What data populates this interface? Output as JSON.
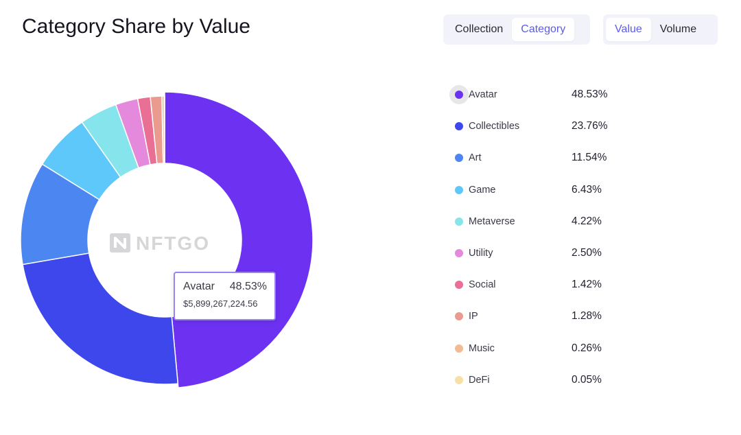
{
  "header": {
    "title": "Category Share by Value"
  },
  "toggles": {
    "mode": [
      {
        "label": "Collection",
        "active": false
      },
      {
        "label": "Category",
        "active": true
      }
    ],
    "metric": [
      {
        "label": "Value",
        "active": true
      },
      {
        "label": "Volume",
        "active": false
      }
    ]
  },
  "watermark": "NFTGO",
  "tooltip": {
    "name": "Avatar",
    "percent": "48.53%",
    "amount": "$5,899,267,224.56"
  },
  "legend": [
    {
      "name": "Avatar",
      "percent": "48.53%",
      "color": "#6d31f2",
      "highlighted": true
    },
    {
      "name": "Collectibles",
      "percent": "23.76%",
      "color": "#3d47ec"
    },
    {
      "name": "Art",
      "percent": "11.54%",
      "color": "#4b86f1"
    },
    {
      "name": "Game",
      "percent": "6.43%",
      "color": "#5ec8fb"
    },
    {
      "name": "Metaverse",
      "percent": "4.22%",
      "color": "#86e4ec"
    },
    {
      "name": "Utility",
      "percent": "2.50%",
      "color": "#e489dc"
    },
    {
      "name": "Social",
      "percent": "1.42%",
      "color": "#ea6f95"
    },
    {
      "name": "IP",
      "percent": "1.28%",
      "color": "#eb9a8e"
    },
    {
      "name": "Music",
      "percent": "0.26%",
      "color": "#f2bb94"
    },
    {
      "name": "DeFi",
      "percent": "0.05%",
      "color": "#f7dfa6"
    }
  ],
  "chart_data": {
    "type": "pie",
    "variant": "donut",
    "categories": [
      "Avatar",
      "Collectibles",
      "Art",
      "Game",
      "Metaverse",
      "Utility",
      "Social",
      "IP",
      "Music",
      "DeFi"
    ],
    "values": [
      48.53,
      23.76,
      11.54,
      6.43,
      4.22,
      2.5,
      1.42,
      1.28,
      0.26,
      0.05
    ],
    "colors": [
      "#6d31f2",
      "#3d47ec",
      "#4b86f1",
      "#5ec8fb",
      "#86e4ec",
      "#e489dc",
      "#ea6f95",
      "#eb9a8e",
      "#f2bb94",
      "#f7dfa6"
    ],
    "unit": "%",
    "highlighted": "Avatar",
    "title": "Category Share by Value",
    "legend_placement": "right"
  }
}
